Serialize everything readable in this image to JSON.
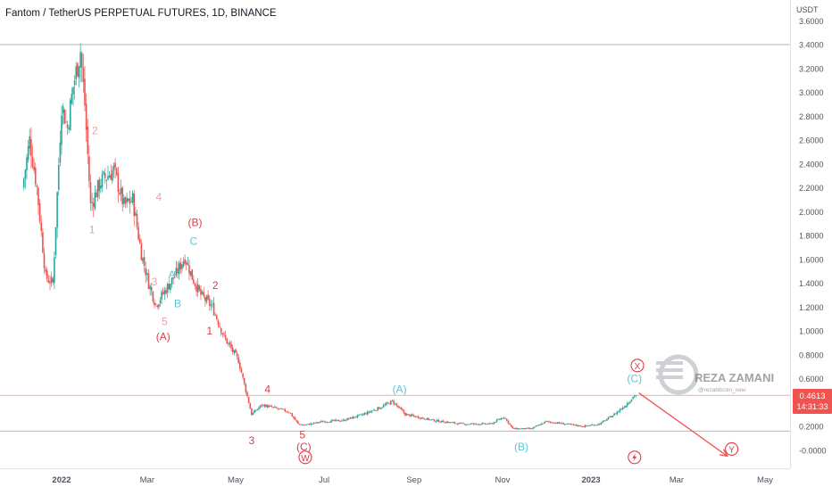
{
  "chart_data": {
    "type": "candlestick",
    "title": "Fantom / TetherUS PERPETUAL FUTURES, 1D, BINANCE",
    "currency": "USDT",
    "ylim": [
      -0.1,
      3.65
    ],
    "yticks": [
      "3.6000",
      "3.4000",
      "3.2000",
      "3.0000",
      "2.8000",
      "2.6000",
      "2.4000",
      "2.2000",
      "2.0000",
      "1.8000",
      "1.6000",
      "1.4000",
      "1.2000",
      "1.0000",
      "0.8000",
      "0.6000",
      "0.4000",
      "0.2000",
      "-0.0000"
    ],
    "xticks": [
      {
        "label": "2022",
        "date": "2022-01-01"
      },
      {
        "label": "Mar",
        "date": "2022-03-01"
      },
      {
        "label": "May",
        "date": "2022-05-01"
      },
      {
        "label": "Jul",
        "date": "2022-07-01"
      },
      {
        "label": "Sep",
        "date": "2022-09-01"
      },
      {
        "label": "Nov",
        "date": "2022-11-01"
      },
      {
        "label": "2023",
        "date": "2023-01-01"
      },
      {
        "label": "Mar",
        "date": "2023-03-01"
      },
      {
        "label": "May",
        "date": "2023-05-01"
      }
    ],
    "price_path": [
      [
        "2021-12-06",
        2.2
      ],
      [
        "2021-12-11",
        2.6
      ],
      [
        "2021-12-16",
        2.2
      ],
      [
        "2021-12-22",
        1.45
      ],
      [
        "2021-12-27",
        1.4
      ],
      [
        "2022-01-02",
        2.9
      ],
      [
        "2022-01-06",
        2.7
      ],
      [
        "2022-01-10",
        3.05
      ],
      [
        "2022-01-15",
        3.35
      ],
      [
        "2022-01-18",
        2.9
      ],
      [
        "2022-01-22",
        2.05
      ],
      [
        "2022-01-29",
        2.25
      ],
      [
        "2022-02-07",
        2.35
      ],
      [
        "2022-02-14",
        2.05
      ],
      [
        "2022-02-20",
        2.1
      ],
      [
        "2022-02-26",
        1.65
      ],
      [
        "2022-03-03",
        1.4
      ],
      [
        "2022-03-08",
        1.22
      ],
      [
        "2022-03-15",
        1.35
      ],
      [
        "2022-03-22",
        1.48
      ],
      [
        "2022-03-28",
        1.62
      ],
      [
        "2022-04-02",
        1.45
      ],
      [
        "2022-04-08",
        1.3
      ],
      [
        "2022-04-16",
        1.2
      ],
      [
        "2022-04-24",
        0.95
      ],
      [
        "2022-05-04",
        0.75
      ],
      [
        "2022-05-10",
        0.45
      ],
      [
        "2022-05-13",
        0.3
      ],
      [
        "2022-05-20",
        0.38
      ],
      [
        "2022-05-30",
        0.35
      ],
      [
        "2022-06-08",
        0.32
      ],
      [
        "2022-06-14",
        0.22
      ],
      [
        "2022-06-18",
        0.21
      ],
      [
        "2022-07-01",
        0.24
      ],
      [
        "2022-07-15",
        0.25
      ],
      [
        "2022-07-29",
        0.3
      ],
      [
        "2022-08-10",
        0.36
      ],
      [
        "2022-08-18",
        0.41
      ],
      [
        "2022-08-27",
        0.3
      ],
      [
        "2022-09-15",
        0.25
      ],
      [
        "2022-10-05",
        0.22
      ],
      [
        "2022-10-25",
        0.22
      ],
      [
        "2022-11-03",
        0.28
      ],
      [
        "2022-11-09",
        0.18
      ],
      [
        "2022-11-22",
        0.18
      ],
      [
        "2022-12-02",
        0.24
      ],
      [
        "2022-12-15",
        0.22
      ],
      [
        "2022-12-28",
        0.2
      ],
      [
        "2023-01-08",
        0.22
      ],
      [
        "2023-01-18",
        0.3
      ],
      [
        "2023-01-26",
        0.38
      ],
      [
        "2023-02-01",
        0.46
      ]
    ],
    "last_price": {
      "value": 0.4613,
      "label": "0.4613",
      "countdown": "14:31:33"
    },
    "horizontal_lines": [
      3.4,
      0.46,
      0.16
    ],
    "projection": {
      "from": [
        "2023-02-03",
        0.48
      ],
      "to": [
        "2023-04-05",
        -0.05
      ]
    },
    "wave_labels": [
      {
        "text": "1",
        "date": "2022-01-22",
        "y": 1.82,
        "color": "#e8a0a8"
      },
      {
        "text": "2",
        "date": "2022-01-24",
        "y": 2.65,
        "color": "#e8a0a8"
      },
      {
        "text": "3",
        "date": "2022-03-06",
        "y": 1.38,
        "color": "#e8a0a8"
      },
      {
        "text": "4",
        "date": "2022-03-09",
        "y": 2.09,
        "color": "#e8a0a8"
      },
      {
        "text": "5",
        "date": "2022-03-13",
        "y": 1.05,
        "color": "#e8a0a8"
      },
      {
        "text": "A",
        "date": "2022-03-18",
        "y": 1.44,
        "color": "#5bc8d8"
      },
      {
        "text": "B",
        "date": "2022-03-22",
        "y": 1.2,
        "color": "#5bc8d8"
      },
      {
        "text": "C",
        "date": "2022-04-02",
        "y": 1.72,
        "color": "#5bc8d8"
      },
      {
        "text": "(B)",
        "date": "2022-04-03",
        "y": 1.88,
        "color": "#e03b48"
      },
      {
        "text": "(A)",
        "date": "2022-03-12",
        "y": 0.92,
        "color": "#e03b48"
      },
      {
        "text": "2",
        "date": "2022-04-17",
        "y": 1.35,
        "color": "#e03b48"
      },
      {
        "text": "1",
        "date": "2022-04-13",
        "y": 0.97,
        "color": "#e03b48"
      },
      {
        "text": "4",
        "date": "2022-05-23",
        "y": 0.48,
        "color": "#e03b48"
      },
      {
        "text": "3",
        "date": "2022-05-12",
        "y": 0.05,
        "color": "#e03b48"
      },
      {
        "text": "5",
        "date": "2022-06-16",
        "y": 0.1,
        "color": "#e03b48"
      },
      {
        "text": "(C)",
        "date": "2022-06-17",
        "y": 0.0,
        "color": "#e03b48"
      },
      {
        "text": "(A)",
        "date": "2022-08-22",
        "y": 0.48,
        "color": "#5bc8d8"
      },
      {
        "text": "(B)",
        "date": "2022-11-14",
        "y": 0.0,
        "color": "#5bc8d8"
      },
      {
        "text": "(C)",
        "date": "2023-01-31",
        "y": 0.57,
        "color": "#5bc8d8"
      }
    ],
    "circled_labels": [
      {
        "text": "W",
        "date": "2022-06-18",
        "y": -0.06,
        "color": "#e03b48"
      },
      {
        "text": "X",
        "date": "2023-02-02",
        "y": 0.71,
        "color": "#e03b48"
      },
      {
        "text": "Y",
        "date": "2023-04-08",
        "y": 0.01,
        "color": "#e03b48"
      }
    ],
    "bolt_icon": {
      "date": "2023-01-31",
      "y": -0.06,
      "color": "#e03b48",
      "icon": "lightning-bolt-icon"
    },
    "watermark": {
      "name": "REZA ZAMANI",
      "handle": "@rezabitcoin_new"
    },
    "colors": {
      "up": "#26a69a",
      "down": "#ef5350",
      "text": "#131722",
      "axis": "#50535e",
      "price_tag": "#ef5350",
      "hline": "#b2b5be",
      "hline_price": "#f7a9b0"
    }
  }
}
